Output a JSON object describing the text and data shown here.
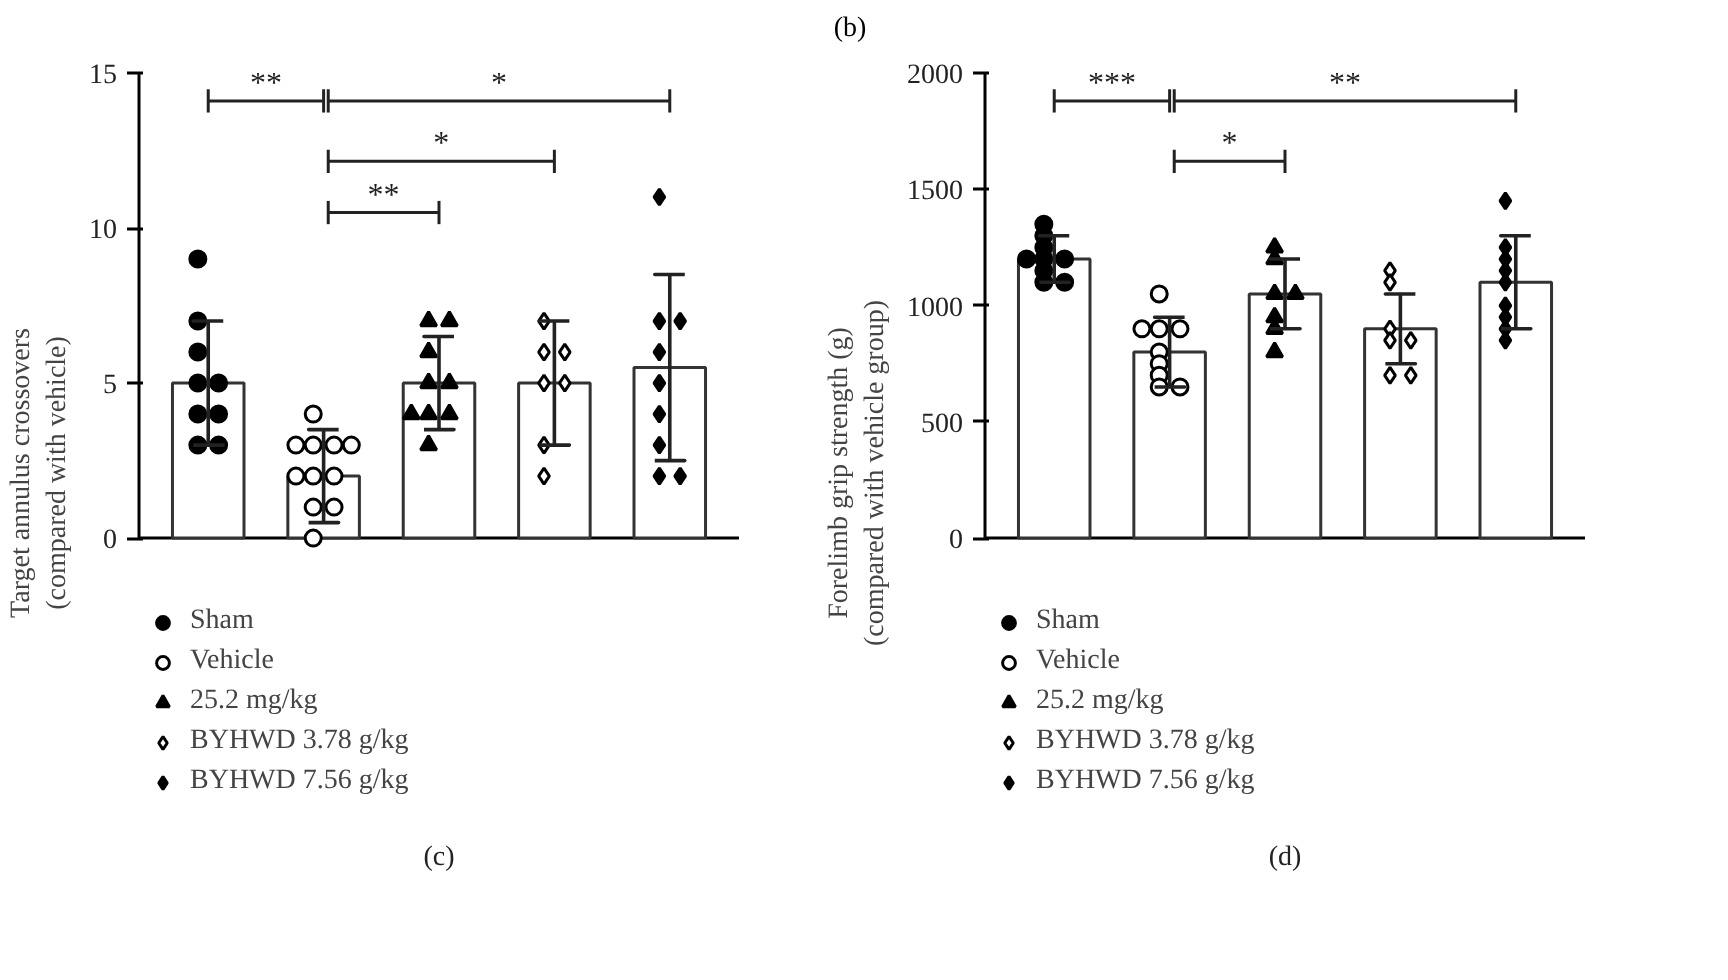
{
  "chart_data": [
    {
      "type": "bar",
      "ylabel": "Target annulus crossovers\n(compared with vehicle)",
      "categories": [
        null,
        null,
        null,
        null,
        null
      ],
      "ylim": [
        0,
        15
      ],
      "yticks": [
        0,
        5,
        10,
        15
      ],
      "legend": "bottom",
      "tick_labels": "y",
      "series": [
        {
          "color": "#ffffff",
          "values": [
            5,
            2,
            5,
            5,
            5.5
          ],
          "errors": [
            2,
            1.5,
            1.5,
            2,
            3
          ]
        },
        {
          "type": "scatter",
          "name": "Sham",
          "color": "#000000",
          "marker": "circle",
          "values": [
            9,
            null,
            null,
            null,
            null
          ]
        },
        {
          "type": "scatter",
          "color": "#000000",
          "marker": "circle",
          "values": [
            7,
            null,
            null,
            null,
            null
          ]
        },
        {
          "type": "scatter",
          "color": "#000000",
          "marker": "circle",
          "values": [
            6,
            null,
            null,
            null,
            null
          ]
        },
        {
          "type": "scatter",
          "color": "#000000",
          "marker": "circle",
          "values": [
            5,
            null,
            null,
            null,
            null
          ]
        },
        {
          "type": "scatter",
          "color": "#000000",
          "marker": "circle",
          "values": [
            5,
            null,
            null,
            null,
            null
          ]
        },
        {
          "type": "scatter",
          "color": "#000000",
          "marker": "circle",
          "values": [
            4,
            null,
            null,
            null,
            null
          ]
        },
        {
          "type": "scatter",
          "color": "#000000",
          "marker": "circle",
          "values": [
            4,
            null,
            null,
            null,
            null
          ]
        },
        {
          "type": "scatter",
          "color": "#000000",
          "marker": "circle",
          "values": [
            3,
            null,
            null,
            null,
            null
          ]
        },
        {
          "type": "scatter",
          "color": "#000000",
          "marker": "circle",
          "values": [
            3,
            null,
            null,
            null,
            null
          ]
        },
        {
          "type": "scatter",
          "name": "Vehicle",
          "color": "#ffffff",
          "marker": "circle",
          "values": [
            null,
            4,
            null,
            null,
            null
          ]
        },
        {
          "type": "scatter",
          "color": "#ffffff",
          "marker": "circle",
          "values": [
            null,
            3,
            null,
            null,
            null
          ]
        },
        {
          "type": "scatter",
          "color": "#ffffff",
          "marker": "circle",
          "values": [
            null,
            3,
            null,
            null,
            null
          ]
        },
        {
          "type": "scatter",
          "color": "#ffffff",
          "marker": "circle",
          "values": [
            null,
            3,
            null,
            null,
            null
          ]
        },
        {
          "type": "scatter",
          "color": "#ffffff",
          "marker": "circle",
          "values": [
            null,
            3,
            null,
            null,
            null
          ]
        },
        {
          "type": "scatter",
          "color": "#ffffff",
          "marker": "circle",
          "values": [
            null,
            2,
            null,
            null,
            null
          ]
        },
        {
          "type": "scatter",
          "color": "#ffffff",
          "marker": "circle",
          "values": [
            null,
            2,
            null,
            null,
            null
          ]
        },
        {
          "type": "scatter",
          "color": "#ffffff",
          "marker": "circle",
          "values": [
            null,
            2,
            null,
            null,
            null
          ]
        },
        {
          "type": "scatter",
          "color": "#ffffff",
          "marker": "circle",
          "values": [
            null,
            1,
            null,
            null,
            null
          ]
        },
        {
          "type": "scatter",
          "color": "#ffffff",
          "marker": "circle",
          "values": [
            null,
            1,
            null,
            null,
            null
          ]
        },
        {
          "type": "scatter",
          "color": "#ffffff",
          "marker": "circle",
          "values": [
            null,
            0,
            null,
            null,
            null
          ]
        },
        {
          "type": "scatter",
          "name": "25.2 mg/kg",
          "color": "#000000",
          "marker": "triangle",
          "values": [
            null,
            null,
            7,
            null,
            null
          ]
        },
        {
          "type": "scatter",
          "color": "#000000",
          "marker": "triangle",
          "values": [
            null,
            null,
            7,
            null,
            null
          ]
        },
        {
          "type": "scatter",
          "color": "#000000",
          "marker": "triangle",
          "values": [
            null,
            null,
            6,
            null,
            null
          ]
        },
        {
          "type": "scatter",
          "color": "#000000",
          "marker": "triangle",
          "values": [
            null,
            null,
            5,
            null,
            null
          ]
        },
        {
          "type": "scatter",
          "color": "#000000",
          "marker": "triangle",
          "values": [
            null,
            null,
            5,
            null,
            null
          ]
        },
        {
          "type": "scatter",
          "color": "#000000",
          "marker": "triangle",
          "values": [
            null,
            null,
            4,
            null,
            null
          ]
        },
        {
          "type": "scatter",
          "color": "#000000",
          "marker": "triangle",
          "values": [
            null,
            null,
            4,
            null,
            null
          ]
        },
        {
          "type": "scatter",
          "color": "#000000",
          "marker": "triangle",
          "values": [
            null,
            null,
            4,
            null,
            null
          ]
        },
        {
          "type": "scatter",
          "color": "#000000",
          "marker": "triangle",
          "values": [
            null,
            null,
            3,
            null,
            null
          ]
        },
        {
          "type": "scatter",
          "name": "BYHWD 3.78 g/kg",
          "color": "#ffffff",
          "marker": "diamond",
          "values": [
            null,
            null,
            null,
            7,
            null
          ]
        },
        {
          "type": "scatter",
          "color": "#ffffff",
          "marker": "diamond",
          "values": [
            null,
            null,
            null,
            6,
            null
          ]
        },
        {
          "type": "scatter",
          "color": "#ffffff",
          "marker": "diamond",
          "values": [
            null,
            null,
            null,
            6,
            null
          ]
        },
        {
          "type": "scatter",
          "color": "#ffffff",
          "marker": "diamond",
          "values": [
            null,
            null,
            null,
            5,
            null
          ]
        },
        {
          "type": "scatter",
          "color": "#ffffff",
          "marker": "diamond",
          "values": [
            null,
            null,
            null,
            5,
            null
          ]
        },
        {
          "type": "scatter",
          "color": "#ffffff",
          "marker": "diamond",
          "values": [
            null,
            null,
            null,
            3,
            null
          ]
        },
        {
          "type": "scatter",
          "color": "#ffffff",
          "marker": "diamond",
          "values": [
            null,
            null,
            null,
            2,
            null
          ]
        },
        {
          "type": "scatter",
          "name": "BYHWD 7.56 g/kg",
          "color": "#000000",
          "marker": "diamond",
          "values": [
            null,
            null,
            null,
            null,
            11
          ]
        },
        {
          "type": "scatter",
          "color": "#000000",
          "marker": "diamond",
          "values": [
            null,
            null,
            null,
            null,
            7
          ]
        },
        {
          "type": "scatter",
          "color": "#000000",
          "marker": "diamond",
          "values": [
            null,
            null,
            null,
            null,
            7
          ]
        },
        {
          "type": "scatter",
          "color": "#000000",
          "marker": "diamond",
          "values": [
            null,
            null,
            null,
            null,
            6
          ]
        },
        {
          "type": "scatter",
          "color": "#000000",
          "marker": "diamond",
          "values": [
            null,
            null,
            null,
            null,
            5
          ]
        },
        {
          "type": "scatter",
          "color": "#000000",
          "marker": "diamond",
          "values": [
            null,
            null,
            null,
            null,
            4
          ]
        },
        {
          "type": "scatter",
          "color": "#000000",
          "marker": "diamond",
          "values": [
            null,
            null,
            null,
            null,
            3
          ]
        },
        {
          "type": "scatter",
          "color": "#000000",
          "marker": "diamond",
          "values": [
            null,
            null,
            null,
            null,
            2
          ]
        },
        {
          "type": "scatter",
          "color": "#000000",
          "marker": "diamond",
          "values": [
            null,
            null,
            null,
            null,
            2
          ]
        }
      ],
      "annotations": [
        "(b)",
        "**",
        "*",
        "*",
        "**",
        "(c)"
      ]
    },
    {
      "type": "bar",
      "ylabel": "Forelimb grip strength (g)\n(compared with vehicle group)",
      "categories": [
        null,
        null,
        null,
        null,
        null
      ],
      "ylim": [
        0,
        2000
      ],
      "yticks": [
        0,
        500,
        1000,
        1500,
        2000
      ],
      "legend": "bottom",
      "tick_labels": "y",
      "series": [
        {
          "color": "#ffffff",
          "values": [
            1200,
            800,
            1050,
            900,
            1100
          ],
          "errors": [
            100,
            150,
            150,
            150,
            200
          ]
        },
        {
          "type": "scatter",
          "name": "Sham",
          "color": "#000000",
          "marker": "circle",
          "values": [
            1350,
            null,
            null,
            null,
            null
          ]
        },
        {
          "type": "scatter",
          "color": "#000000",
          "marker": "circle",
          "values": [
            1300,
            null,
            null,
            null,
            null
          ]
        },
        {
          "type": "scatter",
          "color": "#000000",
          "marker": "circle",
          "values": [
            1250,
            null,
            null,
            null,
            null
          ]
        },
        {
          "type": "scatter",
          "color": "#000000",
          "marker": "circle",
          "values": [
            1200,
            null,
            null,
            null,
            null
          ]
        },
        {
          "type": "scatter",
          "color": "#000000",
          "marker": "circle",
          "values": [
            1200,
            null,
            null,
            null,
            null
          ]
        },
        {
          "type": "scatter",
          "color": "#000000",
          "marker": "circle",
          "values": [
            1200,
            null,
            null,
            null,
            null
          ]
        },
        {
          "type": "scatter",
          "color": "#000000",
          "marker": "circle",
          "values": [
            1150,
            null,
            null,
            null,
            null
          ]
        },
        {
          "type": "scatter",
          "color": "#000000",
          "marker": "circle",
          "values": [
            1100,
            null,
            null,
            null,
            null
          ]
        },
        {
          "type": "scatter",
          "color": "#000000",
          "marker": "circle",
          "values": [
            1100,
            null,
            null,
            null,
            null
          ]
        },
        {
          "type": "scatter",
          "name": "Vehicle",
          "color": "#ffffff",
          "marker": "circle",
          "values": [
            null,
            1050,
            null,
            null,
            null
          ]
        },
        {
          "type": "scatter",
          "color": "#ffffff",
          "marker": "circle",
          "values": [
            null,
            900,
            null,
            null,
            null
          ]
        },
        {
          "type": "scatter",
          "color": "#ffffff",
          "marker": "circle",
          "values": [
            null,
            900,
            null,
            null,
            null
          ]
        },
        {
          "type": "scatter",
          "color": "#ffffff",
          "marker": "circle",
          "values": [
            null,
            900,
            null,
            null,
            null
          ]
        },
        {
          "type": "scatter",
          "color": "#ffffff",
          "marker": "circle",
          "values": [
            null,
            800,
            null,
            null,
            null
          ]
        },
        {
          "type": "scatter",
          "color": "#ffffff",
          "marker": "circle",
          "values": [
            null,
            750,
            null,
            null,
            null
          ]
        },
        {
          "type": "scatter",
          "color": "#ffffff",
          "marker": "circle",
          "values": [
            null,
            700,
            null,
            null,
            null
          ]
        },
        {
          "type": "scatter",
          "color": "#ffffff",
          "marker": "circle",
          "values": [
            null,
            650,
            null,
            null,
            null
          ]
        },
        {
          "type": "scatter",
          "color": "#ffffff",
          "marker": "circle",
          "values": [
            null,
            650,
            null,
            null,
            null
          ]
        },
        {
          "type": "scatter",
          "name": "25.2 mg/kg",
          "color": "#000000",
          "marker": "triangle",
          "values": [
            null,
            null,
            1250,
            null,
            null
          ]
        },
        {
          "type": "scatter",
          "color": "#000000",
          "marker": "triangle",
          "values": [
            null,
            null,
            1200,
            null,
            null
          ]
        },
        {
          "type": "scatter",
          "color": "#000000",
          "marker": "triangle",
          "values": [
            null,
            null,
            1050,
            null,
            null
          ]
        },
        {
          "type": "scatter",
          "color": "#000000",
          "marker": "triangle",
          "values": [
            null,
            null,
            1050,
            null,
            null
          ]
        },
        {
          "type": "scatter",
          "color": "#000000",
          "marker": "triangle",
          "values": [
            null,
            null,
            950,
            null,
            null
          ]
        },
        {
          "type": "scatter",
          "color": "#000000",
          "marker": "triangle",
          "values": [
            null,
            null,
            900,
            null,
            null
          ]
        },
        {
          "type": "scatter",
          "color": "#000000",
          "marker": "triangle",
          "values": [
            null,
            null,
            800,
            null,
            null
          ]
        },
        {
          "type": "scatter",
          "name": "BYHWD 3.78 g/kg",
          "color": "#ffffff",
          "marker": "diamond",
          "values": [
            null,
            null,
            null,
            1150,
            null
          ]
        },
        {
          "type": "scatter",
          "color": "#ffffff",
          "marker": "diamond",
          "values": [
            null,
            null,
            null,
            1100,
            null
          ]
        },
        {
          "type": "scatter",
          "color": "#ffffff",
          "marker": "diamond",
          "values": [
            null,
            null,
            null,
            900,
            null
          ]
        },
        {
          "type": "scatter",
          "color": "#ffffff",
          "marker": "diamond",
          "values": [
            null,
            null,
            null,
            850,
            null
          ]
        },
        {
          "type": "scatter",
          "color": "#ffffff",
          "marker": "diamond",
          "values": [
            null,
            null,
            null,
            850,
            null
          ]
        },
        {
          "type": "scatter",
          "color": "#ffffff",
          "marker": "diamond",
          "values": [
            null,
            null,
            null,
            700,
            null
          ]
        },
        {
          "type": "scatter",
          "color": "#ffffff",
          "marker": "diamond",
          "values": [
            null,
            null,
            null,
            700,
            null
          ]
        },
        {
          "type": "scatter",
          "name": "BYHWD 7.56 g/kg",
          "color": "#000000",
          "marker": "diamond",
          "values": [
            null,
            null,
            null,
            null,
            1450
          ]
        },
        {
          "type": "scatter",
          "color": "#000000",
          "marker": "diamond",
          "values": [
            null,
            null,
            null,
            null,
            1250
          ]
        },
        {
          "type": "scatter",
          "color": "#000000",
          "marker": "diamond",
          "values": [
            null,
            null,
            null,
            null,
            1200
          ]
        },
        {
          "type": "scatter",
          "color": "#000000",
          "marker": "diamond",
          "values": [
            null,
            null,
            null,
            null,
            1150
          ]
        },
        {
          "type": "scatter",
          "color": "#000000",
          "marker": "diamond",
          "values": [
            null,
            null,
            null,
            null,
            1100
          ]
        },
        {
          "type": "scatter",
          "color": "#000000",
          "marker": "diamond",
          "values": [
            null,
            null,
            null,
            null,
            1000
          ]
        },
        {
          "type": "scatter",
          "color": "#000000",
          "marker": "diamond",
          "values": [
            null,
            null,
            null,
            null,
            950
          ]
        },
        {
          "type": "scatter",
          "color": "#000000",
          "marker": "diamond",
          "values": [
            null,
            null,
            null,
            null,
            900
          ]
        },
        {
          "type": "scatter",
          "color": "#000000",
          "marker": "diamond",
          "values": [
            null,
            null,
            null,
            null,
            850
          ]
        }
      ],
      "annotations": [
        "***",
        "**",
        "*",
        "(d)"
      ]
    }
  ]
}
